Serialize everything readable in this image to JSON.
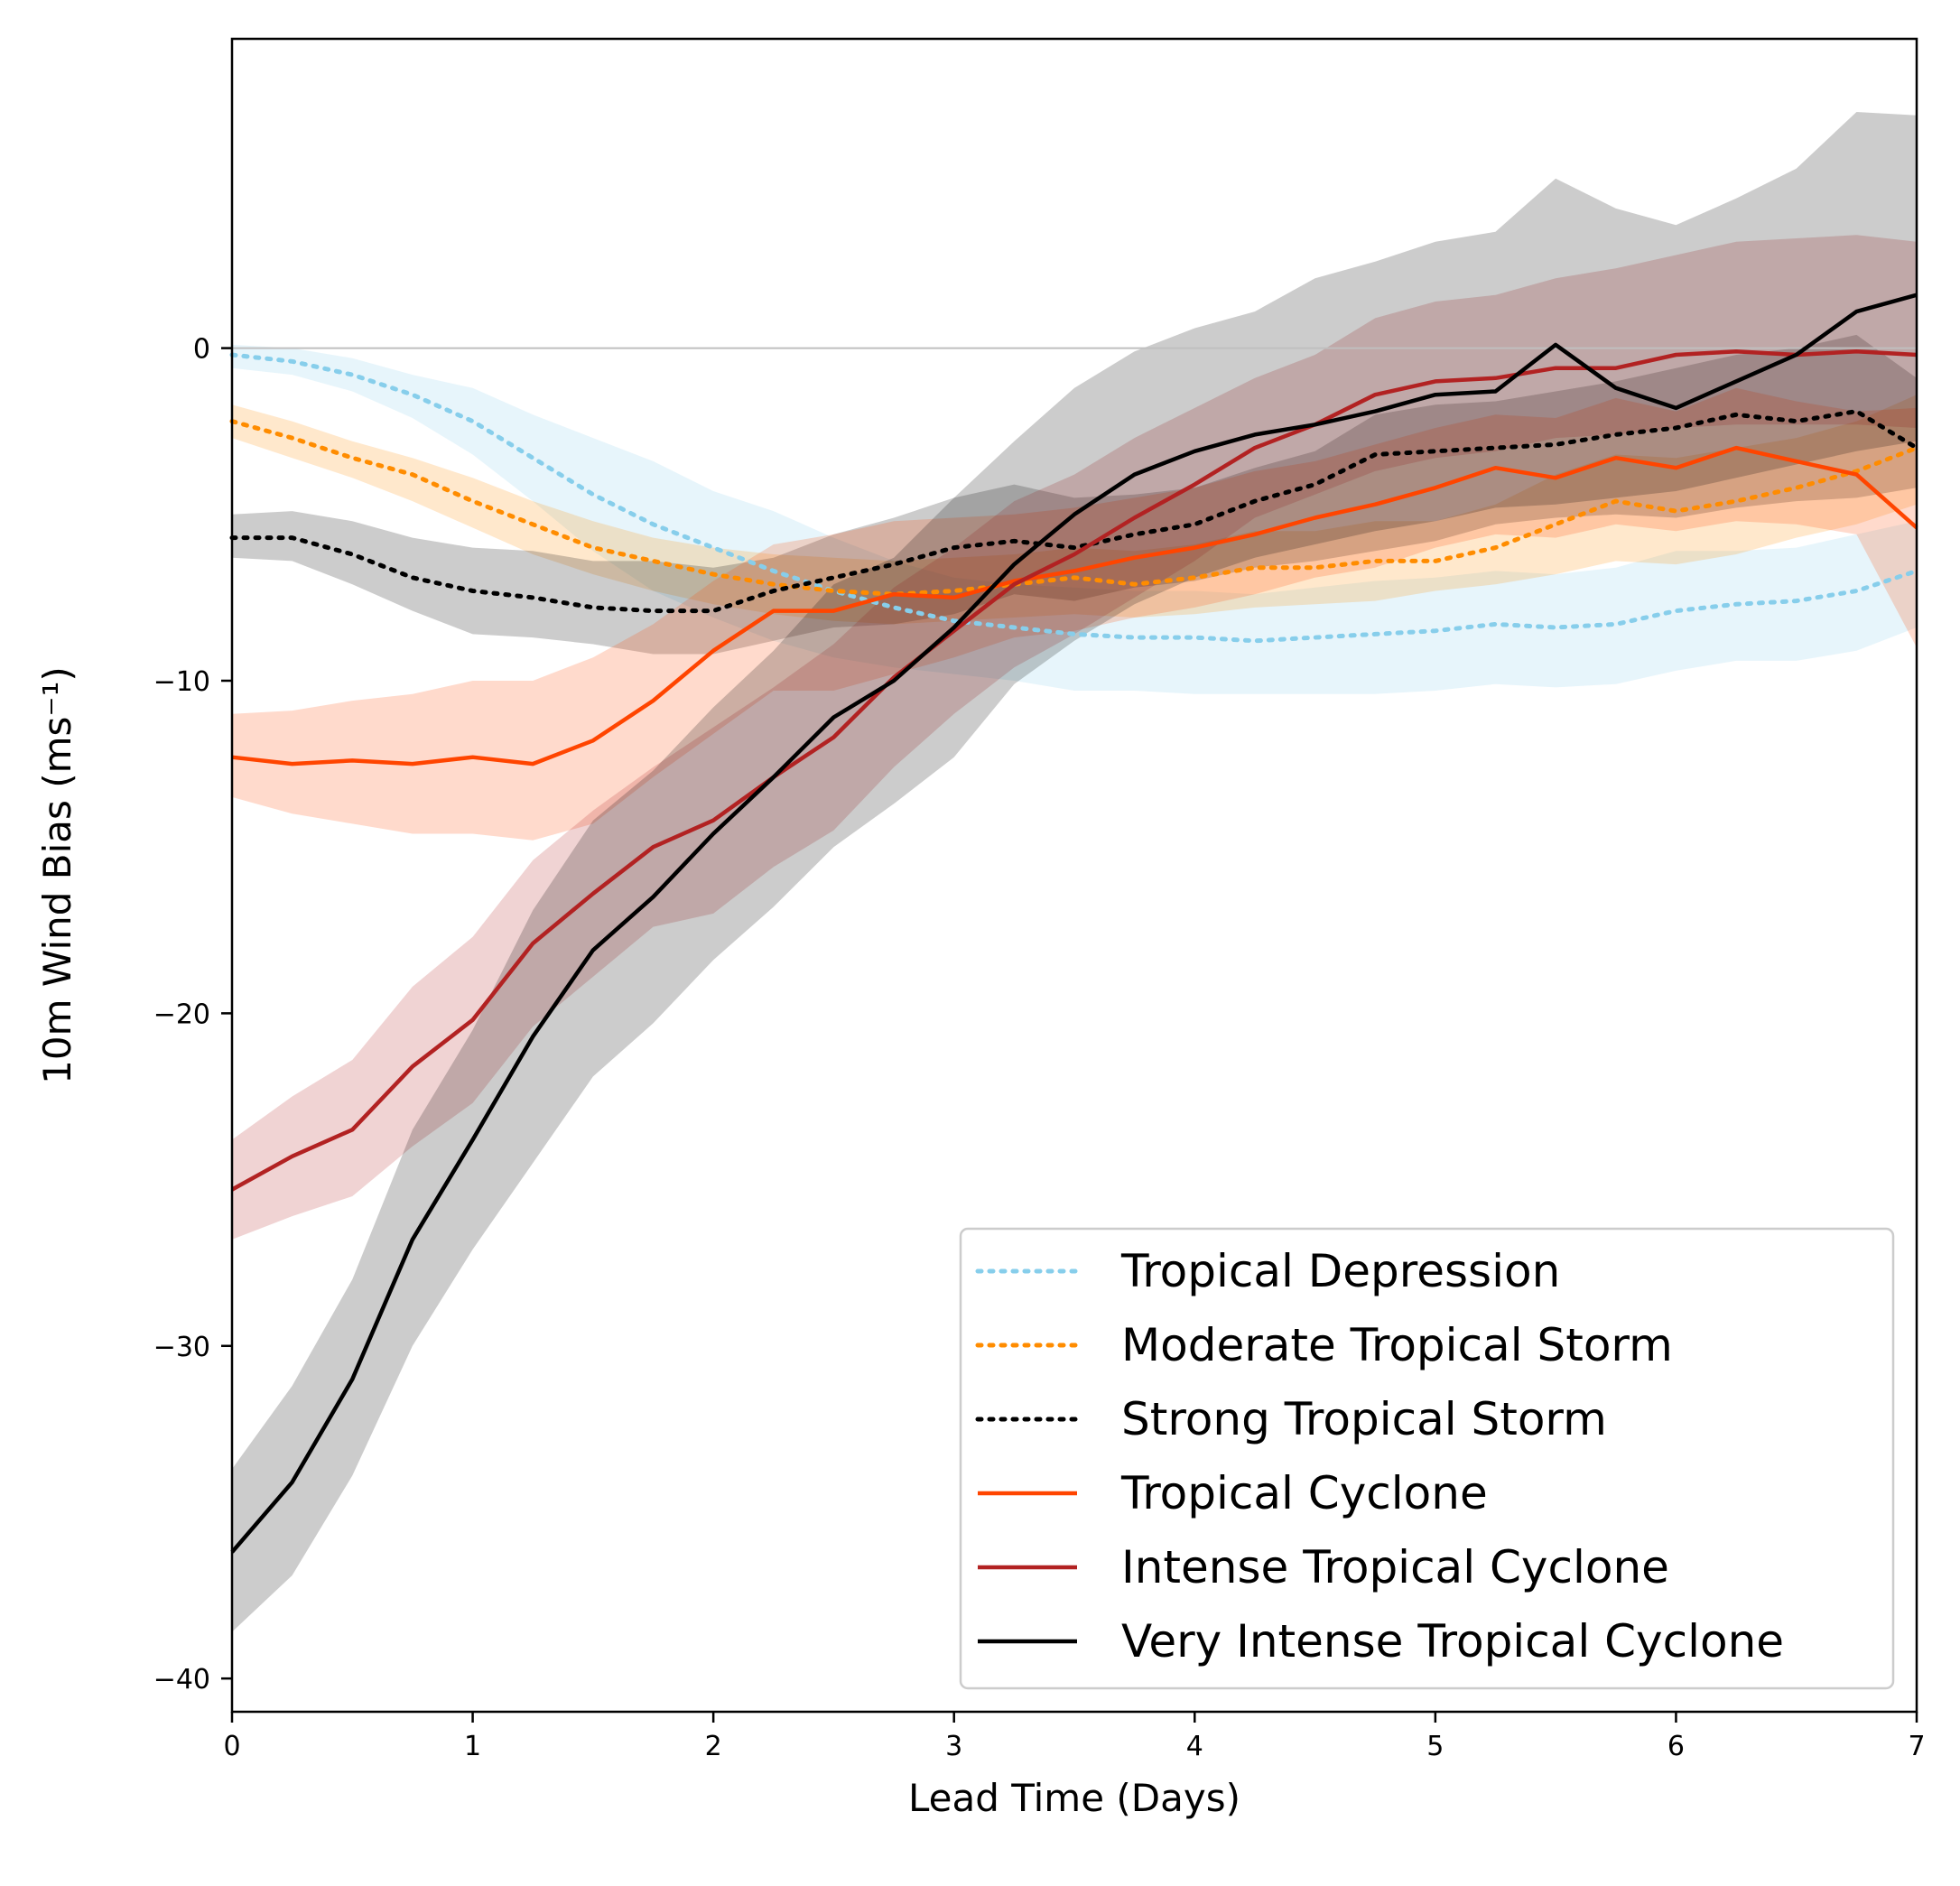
{
  "chart_data": {
    "type": "line",
    "xlabel": "Lead Time (Days)",
    "ylabel": "10m Wind Bias (ms⁻¹)",
    "xlim": [
      0,
      7
    ],
    "ylim": [
      -41,
      9.3
    ],
    "xticks": [
      0,
      1,
      2,
      3,
      4,
      5,
      6,
      7
    ],
    "yticks": [
      0,
      -10,
      -20,
      -30,
      -40
    ],
    "xtick_labels": [
      "0",
      "1",
      "2",
      "3",
      "4",
      "5",
      "6",
      "7"
    ],
    "ytick_labels": [
      "0",
      "−10",
      "−20",
      "−30",
      "−40"
    ],
    "grid": false,
    "zero_line": true,
    "legend_position": "lower-right",
    "x": [
      0,
      0.25,
      0.5,
      0.75,
      1,
      1.25,
      1.5,
      1.75,
      2,
      2.25,
      2.5,
      2.75,
      3,
      3.25,
      3.5,
      3.75,
      4,
      4.25,
      4.5,
      4.75,
      5,
      5.25,
      5.5,
      5.75,
      6,
      6.25,
      6.5,
      6.75,
      7
    ],
    "series": [
      {
        "name": "Tropical Depression",
        "color": "#87CEEB",
        "line_style": "dotted",
        "values": [
          -0.2,
          -0.4,
          -0.8,
          -1.4,
          -2.2,
          -3.3,
          -4.4,
          -5.3,
          -6.0,
          -6.7,
          -7.3,
          -7.8,
          -8.2,
          -8.4,
          -8.6,
          -8.7,
          -8.7,
          -8.8,
          -8.7,
          -8.6,
          -8.5,
          -8.3,
          -8.4,
          -8.3,
          -7.9,
          -7.7,
          -7.6,
          -7.3,
          -6.7
        ],
        "band_lower": [
          -0.6,
          -0.8,
          -1.3,
          -2.1,
          -3.2,
          -4.6,
          -6.1,
          -7.3,
          -8.1,
          -8.8,
          -9.3,
          -9.6,
          -9.8,
          -10.0,
          -10.3,
          -10.3,
          -10.4,
          -10.4,
          -10.4,
          -10.4,
          -10.3,
          -10.1,
          -10.2,
          -10.1,
          -9.7,
          -9.4,
          -9.4,
          -9.1,
          -8.4
        ],
        "band_upper": [
          0.1,
          0.0,
          -0.3,
          -0.8,
          -1.2,
          -2.0,
          -2.7,
          -3.4,
          -4.3,
          -4.9,
          -5.7,
          -6.4,
          -6.9,
          -7.1,
          -7.2,
          -7.3,
          -7.3,
          -7.4,
          -7.2,
          -7.0,
          -6.9,
          -6.7,
          -6.8,
          -6.6,
          -6.1,
          -6.1,
          -6.0,
          -5.6,
          -5.2
        ]
      },
      {
        "name": "Moderate Tropical Storm",
        "color": "#FF8C00",
        "line_style": "dotted",
        "values": [
          -2.2,
          -2.7,
          -3.3,
          -3.8,
          -4.6,
          -5.3,
          -6.0,
          -6.4,
          -6.8,
          -7.1,
          -7.3,
          -7.4,
          -7.3,
          -7.1,
          -6.9,
          -7.1,
          -6.9,
          -6.6,
          -6.6,
          -6.4,
          -6.4,
          -6.0,
          -5.3,
          -4.6,
          -4.9,
          -4.6,
          -4.2,
          -3.7,
          -3.0
        ],
        "band_lower": [
          -2.7,
          -3.3,
          -3.9,
          -4.6,
          -5.4,
          -6.2,
          -6.8,
          -7.3,
          -7.7,
          -8.0,
          -8.2,
          -8.3,
          -8.2,
          -8.1,
          -8.0,
          -8.1,
          -8.0,
          -7.8,
          -7.7,
          -7.6,
          -7.3,
          -7.1,
          -6.8,
          -6.4,
          -6.5,
          -6.2,
          -5.7,
          -5.3,
          -4.7
        ],
        "band_upper": [
          -1.7,
          -2.2,
          -2.8,
          -3.3,
          -3.9,
          -4.6,
          -5.2,
          -5.7,
          -6.0,
          -6.2,
          -6.3,
          -6.4,
          -6.3,
          -6.2,
          -6.0,
          -6.1,
          -5.9,
          -5.5,
          -5.5,
          -5.2,
          -5.2,
          -4.7,
          -3.8,
          -3.2,
          -3.3,
          -3.0,
          -2.7,
          -2.2,
          -1.4
        ]
      },
      {
        "name": "Strong Tropical Storm",
        "color": "#000000",
        "line_style": "dotted",
        "values": [
          -5.7,
          -5.7,
          -6.2,
          -6.9,
          -7.3,
          -7.5,
          -7.8,
          -7.9,
          -7.9,
          -7.3,
          -6.9,
          -6.5,
          -6.0,
          -5.8,
          -6.0,
          -5.6,
          -5.3,
          -4.6,
          -4.1,
          -3.2,
          -3.1,
          -3.0,
          -2.9,
          -2.6,
          -2.4,
          -2.0,
          -2.2,
          -1.9,
          -3.0
        ],
        "band_lower": [
          -6.3,
          -6.4,
          -7.1,
          -7.9,
          -8.6,
          -8.7,
          -8.9,
          -9.2,
          -9.2,
          -8.8,
          -8.4,
          -8.3,
          -8.0,
          -7.4,
          -7.6,
          -7.2,
          -7.0,
          -6.6,
          -6.4,
          -6.1,
          -5.8,
          -5.3,
          -5.1,
          -5.0,
          -5.1,
          -4.8,
          -4.6,
          -4.5,
          -4.2
        ],
        "band_upper": [
          -5.0,
          -4.9,
          -5.2,
          -5.7,
          -6.0,
          -6.1,
          -6.4,
          -6.4,
          -6.6,
          -6.3,
          -5.6,
          -5.1,
          -4.5,
          -4.1,
          -4.5,
          -4.4,
          -4.2,
          -3.6,
          -3.1,
          -2.0,
          -1.7,
          -1.6,
          -1.3,
          -1.0,
          -0.6,
          -0.2,
          0.0,
          0.4,
          -0.9
        ]
      },
      {
        "name": "Tropical Cyclone",
        "color": "#FF4500",
        "line_style": "solid",
        "values": [
          -12.3,
          -12.5,
          -12.4,
          -12.5,
          -12.3,
          -12.5,
          -11.8,
          -10.6,
          -9.1,
          -7.9,
          -7.9,
          -7.4,
          -7.5,
          -7.0,
          -6.7,
          -6.3,
          -6.0,
          -5.6,
          -5.1,
          -4.7,
          -4.2,
          -3.6,
          -3.9,
          -3.3,
          -3.6,
          -3.0,
          -3.4,
          -3.8,
          -5.4
        ],
        "band_lower": [
          -13.5,
          -14.0,
          -14.3,
          -14.6,
          -14.6,
          -14.8,
          -14.3,
          -12.9,
          -11.6,
          -10.3,
          -10.3,
          -9.8,
          -9.3,
          -8.7,
          -8.5,
          -8.1,
          -7.8,
          -7.4,
          -6.9,
          -6.6,
          -6.0,
          -5.6,
          -5.7,
          -5.3,
          -5.5,
          -5.2,
          -5.3,
          -5.6,
          -9.0
        ],
        "band_upper": [
          -11.0,
          -10.9,
          -10.6,
          -10.4,
          -10.0,
          -10.0,
          -9.3,
          -8.3,
          -7.0,
          -5.9,
          -5.6,
          -5.2,
          -5.1,
          -5.0,
          -4.8,
          -4.5,
          -4.2,
          -3.7,
          -3.4,
          -2.9,
          -2.4,
          -2.0,
          -2.1,
          -1.5,
          -1.9,
          -1.2,
          -1.6,
          -1.9,
          -1.8
        ]
      },
      {
        "name": "Intense Tropical Cyclone",
        "color": "#B22222",
        "line_style": "solid",
        "values": [
          -25.3,
          -24.3,
          -23.5,
          -21.6,
          -20.2,
          -17.9,
          -16.4,
          -15.0,
          -14.2,
          -12.9,
          -11.7,
          -9.9,
          -8.5,
          -7.1,
          -6.2,
          -5.1,
          -4.1,
          -3.0,
          -2.3,
          -1.4,
          -1.0,
          -0.9,
          -0.6,
          -0.6,
          -0.2,
          -0.1,
          -0.2,
          -0.1,
          -0.2
        ],
        "band_lower": [
          -26.8,
          -26.1,
          -25.5,
          -24.0,
          -22.7,
          -20.4,
          -18.9,
          -17.4,
          -17.0,
          -15.6,
          -14.5,
          -12.6,
          -11.0,
          -9.6,
          -8.6,
          -7.5,
          -6.4,
          -5.1,
          -4.4,
          -3.7,
          -3.3,
          -3.1,
          -2.7,
          -2.6,
          -2.4,
          -2.3,
          -2.3,
          -2.3,
          -2.4
        ],
        "band_upper": [
          -23.8,
          -22.5,
          -21.4,
          -19.2,
          -17.7,
          -15.4,
          -13.9,
          -12.6,
          -11.4,
          -10.2,
          -8.9,
          -7.2,
          -6.0,
          -4.6,
          -3.8,
          -2.7,
          -1.8,
          -0.9,
          -0.2,
          0.9,
          1.4,
          1.6,
          2.1,
          2.4,
          2.8,
          3.2,
          3.3,
          3.4,
          3.2
        ]
      },
      {
        "name": "Very Intense Tropical Cyclone",
        "color": "#000000",
        "line_style": "solid",
        "values": [
          -36.2,
          -34.1,
          -31.0,
          -26.8,
          -23.8,
          -20.7,
          -18.1,
          -16.5,
          -14.6,
          -12.9,
          -11.1,
          -10.0,
          -8.4,
          -6.5,
          -5.0,
          -3.8,
          -3.1,
          -2.6,
          -2.3,
          -1.9,
          -1.4,
          -1.3,
          0.1,
          -1.2,
          -1.8,
          -1.0,
          -0.2,
          1.1,
          1.6
        ],
        "band_lower": [
          -38.6,
          -36.9,
          -33.9,
          -30.0,
          -27.1,
          -24.5,
          -21.9,
          -20.3,
          -18.4,
          -16.8,
          -15.0,
          -13.7,
          -12.3,
          -10.1,
          -8.8,
          -7.7,
          -6.9,
          -6.3,
          -5.9,
          -5.5,
          -5.2,
          -4.8,
          -4.7,
          -4.5,
          -4.3,
          -3.9,
          -3.5,
          -3.1,
          -2.8
        ],
        "band_upper": [
          -33.7,
          -31.2,
          -28.0,
          -23.5,
          -20.5,
          -16.9,
          -14.2,
          -12.7,
          -10.8,
          -9.1,
          -7.1,
          -6.3,
          -4.5,
          -2.8,
          -1.2,
          -0.1,
          0.6,
          1.1,
          2.1,
          2.6,
          3.2,
          3.5,
          5.1,
          4.2,
          3.7,
          4.5,
          5.4,
          7.1,
          7.0
        ]
      }
    ]
  }
}
